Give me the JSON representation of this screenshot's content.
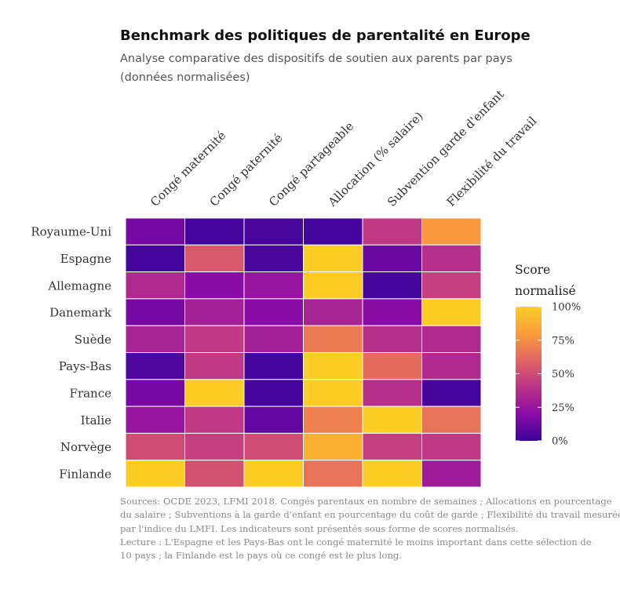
{
  "title": "Benchmark des politiques de parentalité en Europe",
  "subtitle_lines": [
    "Analyse comparative des dispositifs de soutien aux parents par pays",
    "(données normalisées)"
  ],
  "source_lines": [
    "Sources: OCDE 2023, LFMI 2018. Congés parentaux en nombre de semaines ; Allocations en pourcentage",
    "du salaire ; Subventions à la garde d'enfant en pourcentage du coût de garde ; Flexibilité du travail mesurée",
    "par l'indice du LMFI. Les indicateurs sont présentés sous forme de scores normalisés.",
    "Lecture : L'Espagne et les Pays-Bas ont le congé maternité le moins important dans cette sélection de",
    "10 pays ; la Finlande est le pays où ce congé est le plus long."
  ],
  "chart_data": {
    "type": "heatmap",
    "x": [
      "Congé maternité",
      "Congé paternité",
      "Congé partageable",
      "Allocation (% salaire)",
      "Subvention garde d'enfant",
      "Flexibilité du travail"
    ],
    "y": [
      "Royaume-Uni",
      "Espagne",
      "Allemagne",
      "Danemark",
      "Suède",
      "Pays-Bas",
      "France",
      "Italie",
      "Norvège",
      "Finlande"
    ],
    "values": [
      [
        0.15,
        0.02,
        0.03,
        0.02,
        0.42,
        0.78
      ],
      [
        0.02,
        0.55,
        0.03,
        1.0,
        0.12,
        0.38
      ],
      [
        0.35,
        0.2,
        0.25,
        1.0,
        0.02,
        0.45
      ],
      [
        0.15,
        0.3,
        0.2,
        0.32,
        0.2,
        1.0
      ],
      [
        0.32,
        0.42,
        0.3,
        0.68,
        0.38,
        0.35
      ],
      [
        0.05,
        0.42,
        0.02,
        1.0,
        0.62,
        0.35
      ],
      [
        0.15,
        1.0,
        0.02,
        1.0,
        0.38,
        0.02
      ],
      [
        0.25,
        0.42,
        0.1,
        0.7,
        1.0,
        0.65
      ],
      [
        0.5,
        0.45,
        0.5,
        0.88,
        0.45,
        0.42
      ],
      [
        1.0,
        0.52,
        1.0,
        0.65,
        1.0,
        0.28
      ]
    ],
    "color_scale": {
      "name": "plasma",
      "stops": [
        "#3b049a",
        "#8a0ba5",
        "#bb3488",
        "#e16462",
        "#fa9e3b",
        "#fccd25"
      ]
    },
    "legend": {
      "title_lines": [
        "Score",
        "normalisé"
      ],
      "ticks": [
        "0%",
        "25%",
        "50%",
        "75%",
        "100%"
      ],
      "tick_values": [
        0,
        0.25,
        0.5,
        0.75,
        1.0
      ]
    }
  }
}
